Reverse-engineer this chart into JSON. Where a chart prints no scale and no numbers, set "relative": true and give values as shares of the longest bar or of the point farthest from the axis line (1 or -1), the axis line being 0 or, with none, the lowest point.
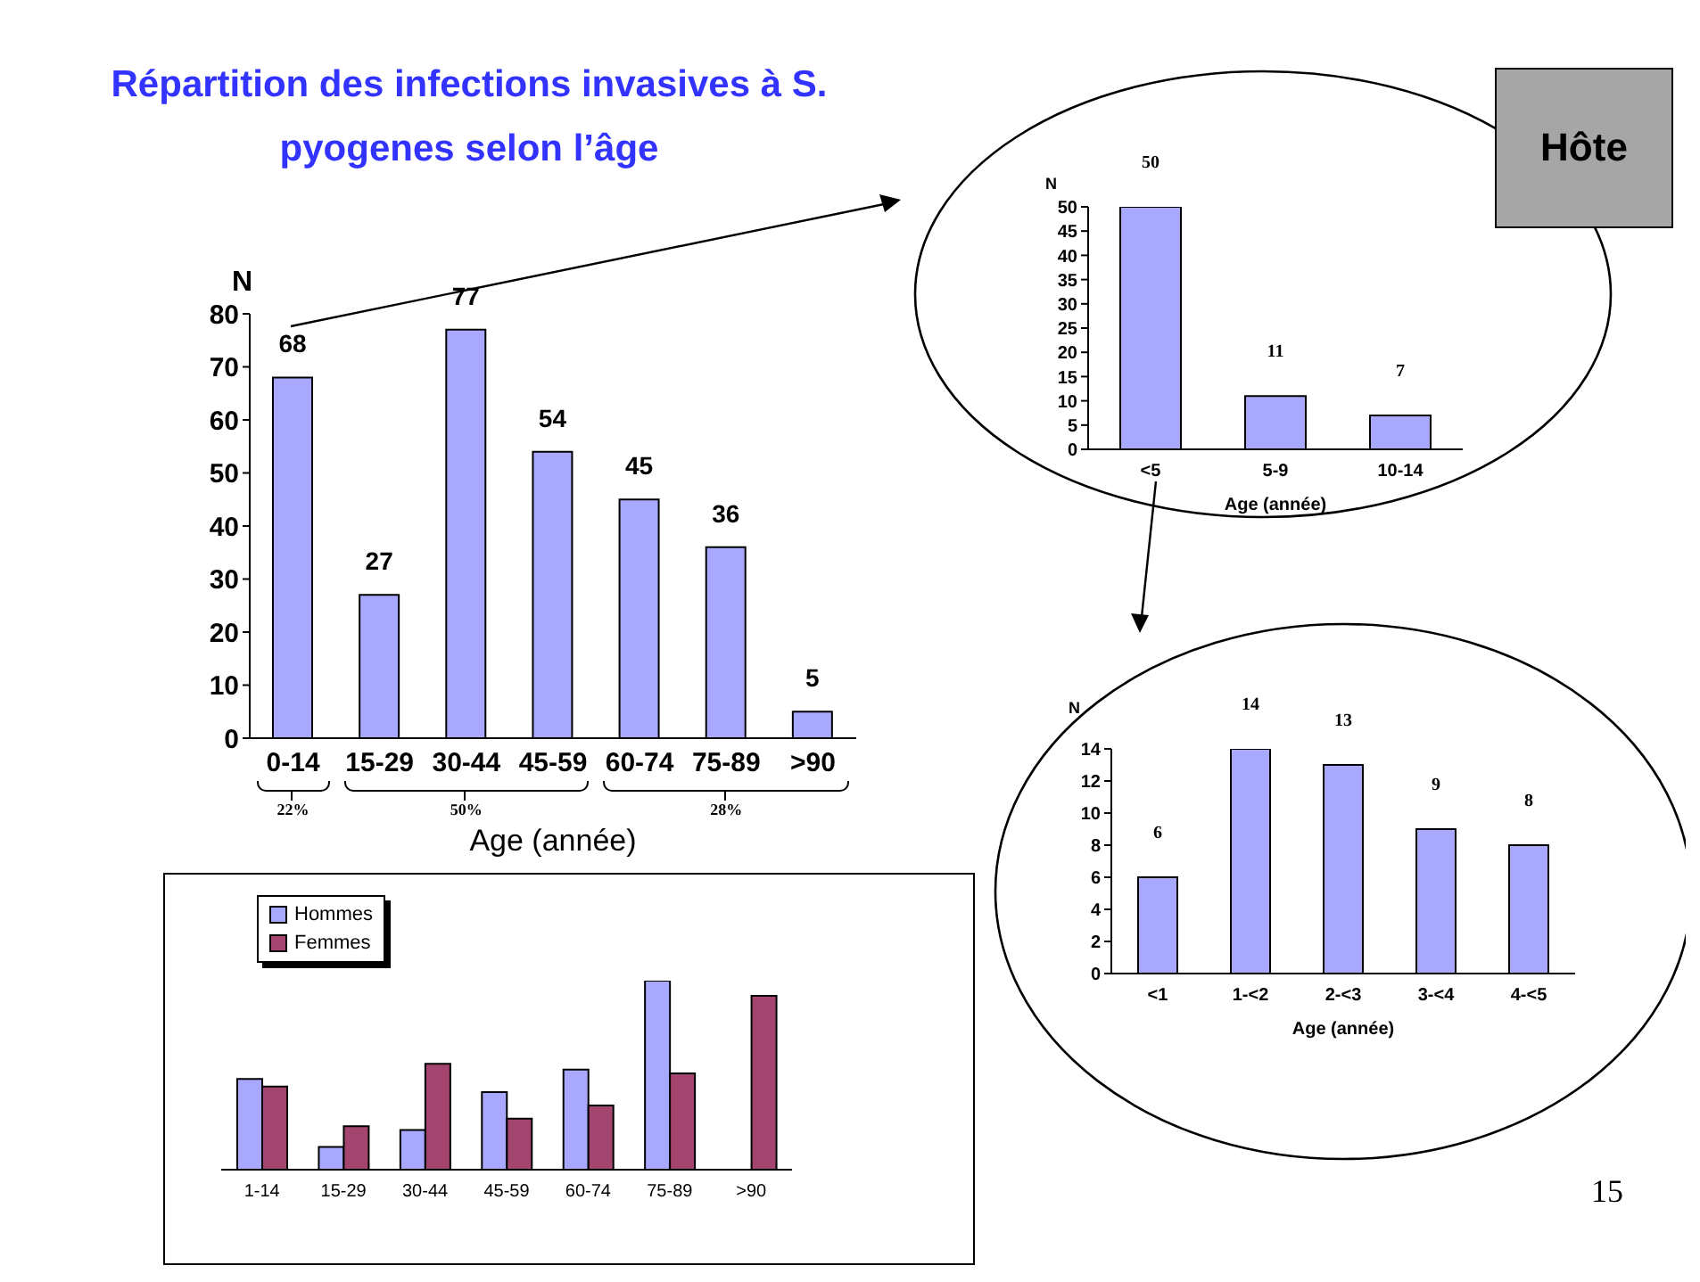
{
  "chart_data": [
    {
      "type": "bar",
      "title": "Répartition des infections invasives à S. pyogenes selon l’âge",
      "categories": [
        "0-14",
        "15-29",
        "30-44",
        "45-59",
        "60-74",
        "75-89",
        ">90"
      ],
      "values": [
        68,
        27,
        77,
        54,
        45,
        36,
        5
      ],
      "color": "#a8a8ff",
      "ylim": [
        0,
        80
      ],
      "yticks": [
        0,
        10,
        20,
        30,
        40,
        50,
        60,
        70,
        80
      ],
      "data_labels": true,
      "xlabel": "Age (année)",
      "ylabel": "N",
      "annotations": [
        "22%",
        "50%",
        "28%"
      ]
    },
    {
      "type": "bar",
      "categories": [
        "<5",
        "5-9",
        "10-14"
      ],
      "values": [
        50,
        11,
        7
      ],
      "color": "#a8a8ff",
      "ylim": [
        0,
        50
      ],
      "yticks": [
        0,
        5,
        10,
        15,
        20,
        25,
        30,
        35,
        40,
        45,
        50
      ],
      "data_labels": true,
      "xlabel": "Age (année)",
      "ylabel": "N",
      "annotations": [
        "Hôte"
      ]
    },
    {
      "type": "bar",
      "categories": [
        "<1",
        "1-<2",
        "2-<3",
        "3-<4",
        "4-<5"
      ],
      "values": [
        6,
        14,
        13,
        9,
        8
      ],
      "color": "#a8a8ff",
      "ylim": [
        0,
        14
      ],
      "yticks": [
        0,
        2,
        4,
        6,
        8,
        10,
        12,
        14
      ],
      "data_labels": true,
      "xlabel": "Age (année)",
      "ylabel": "N"
    },
    {
      "type": "bar",
      "relative": true,
      "categories": [
        "1-14",
        "15-29",
        "30-44",
        "45-59",
        "60-74",
        "75-89",
        ">90"
      ],
      "series": [
        {
          "name": "Hommes",
          "color": "#a8a8ff",
          "values": [
            0.48,
            0.12,
            0.21,
            0.41,
            0.53,
            1,
            null
          ]
        },
        {
          "name": "Femmes",
          "color": "#a3456f",
          "values": [
            0.44,
            0.23,
            0.56,
            0.27,
            0.34,
            0.51,
            0.92
          ]
        }
      ],
      "legend": "top left",
      "annotations": [
        "15"
      ]
    }
  ]
}
